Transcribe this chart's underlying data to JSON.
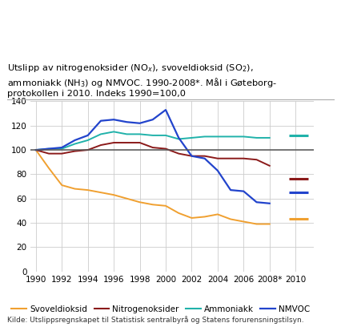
{
  "title_full": "Utslipp av nitrogenoksider (NO$_x$), svoveldioksid (SO$_2$),\nammoniakk (NH$_3$) og NMVOC. 1990-2008*. Mål i Gøteborg-\nprotokollen i 2010. Indeks 1990=100,0",
  "source": "Kilde: Utslippsregnskapet til Statistisk sentralbyrå og Statens forurensningstilsyn.",
  "years_main": [
    1990,
    1991,
    1992,
    1993,
    1994,
    1995,
    1996,
    1997,
    1998,
    1999,
    2000,
    2001,
    2002,
    2003,
    2004,
    2005,
    2006,
    2007,
    2008
  ],
  "year_target": 2010,
  "svoveldioksid": [
    100,
    85,
    71,
    68,
    67,
    65,
    63,
    60,
    57,
    55,
    54,
    48,
    44,
    45,
    47,
    43,
    41,
    39,
    39
  ],
  "nitrogenoksider": [
    100,
    97,
    97,
    99,
    100,
    104,
    106,
    106,
    106,
    102,
    101,
    97,
    95,
    95,
    93,
    93,
    93,
    92,
    87
  ],
  "ammoniakk": [
    100,
    101,
    101,
    105,
    108,
    113,
    115,
    113,
    113,
    112,
    112,
    109,
    110,
    111,
    111,
    111,
    111,
    110,
    110
  ],
  "nmvoc": [
    100,
    101,
    102,
    108,
    112,
    124,
    125,
    123,
    122,
    125,
    133,
    110,
    95,
    93,
    83,
    67,
    66,
    57,
    56
  ],
  "target_svoveldioksid": 43,
  "target_nitrogenoksider": 76,
  "target_ammoniakk": 112,
  "target_nmvoc": 65,
  "color_svoveldioksid": "#f0a030",
  "color_nitrogenoksider": "#8b1a1a",
  "color_ammoniakk": "#20b2aa",
  "color_nmvoc": "#2244cc",
  "hline_color": "#555555",
  "hline_y": 100,
  "ylim": [
    0,
    140
  ],
  "yticks": [
    0,
    20,
    40,
    60,
    80,
    100,
    120,
    140
  ],
  "xtick_labels": [
    "1990",
    "1992",
    "1994",
    "1996",
    "1998",
    "2000",
    "2002",
    "2004",
    "2006",
    "2008*",
    "2010"
  ],
  "xtick_positions": [
    1990,
    1992,
    1994,
    1996,
    1998,
    2000,
    2002,
    2004,
    2006,
    2008,
    2010
  ],
  "legend_labels": [
    "Svoveldioksid",
    "Nitrogenoksider",
    "Ammoniakk",
    "NMVOC"
  ],
  "bg_color": "#ffffff",
  "grid_color": "#cccccc"
}
